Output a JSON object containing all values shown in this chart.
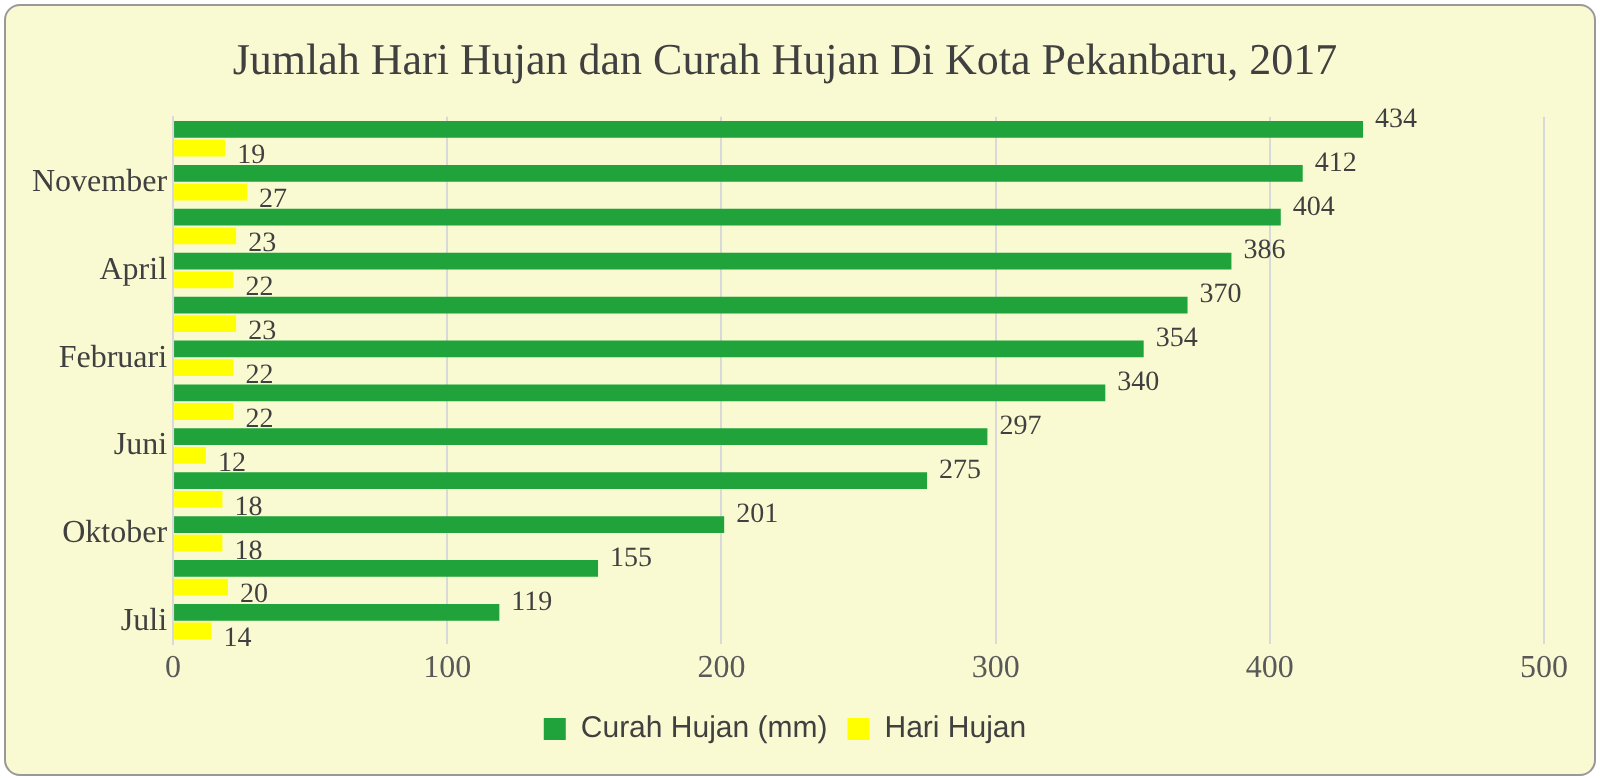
{
  "chart_data": {
    "type": "bar",
    "orientation": "horizontal",
    "title": "Jumlah Hari Hujan dan Curah Hujan Di Kota Pekanbaru, 2017",
    "categories": [
      null,
      "November",
      null,
      "April",
      null,
      "Februari",
      null,
      "Juni",
      null,
      "Oktober",
      null,
      "Juli"
    ],
    "series": [
      {
        "name": "Curah Hujan (mm)",
        "color": "#1fa33a",
        "values": [
          434,
          412,
          404,
          386,
          370,
          354,
          340,
          297,
          275,
          201,
          155,
          119
        ]
      },
      {
        "name": "Hari Hujan",
        "color": "#ffff00",
        "values": [
          19,
          27,
          23,
          22,
          23,
          22,
          22,
          12,
          18,
          18,
          20,
          14
        ]
      }
    ],
    "xlim": [
      0,
      500
    ],
    "xticks": [
      0,
      100,
      200,
      300,
      400,
      500
    ],
    "grid": "x",
    "legend": "bottom",
    "data_labels": true
  }
}
